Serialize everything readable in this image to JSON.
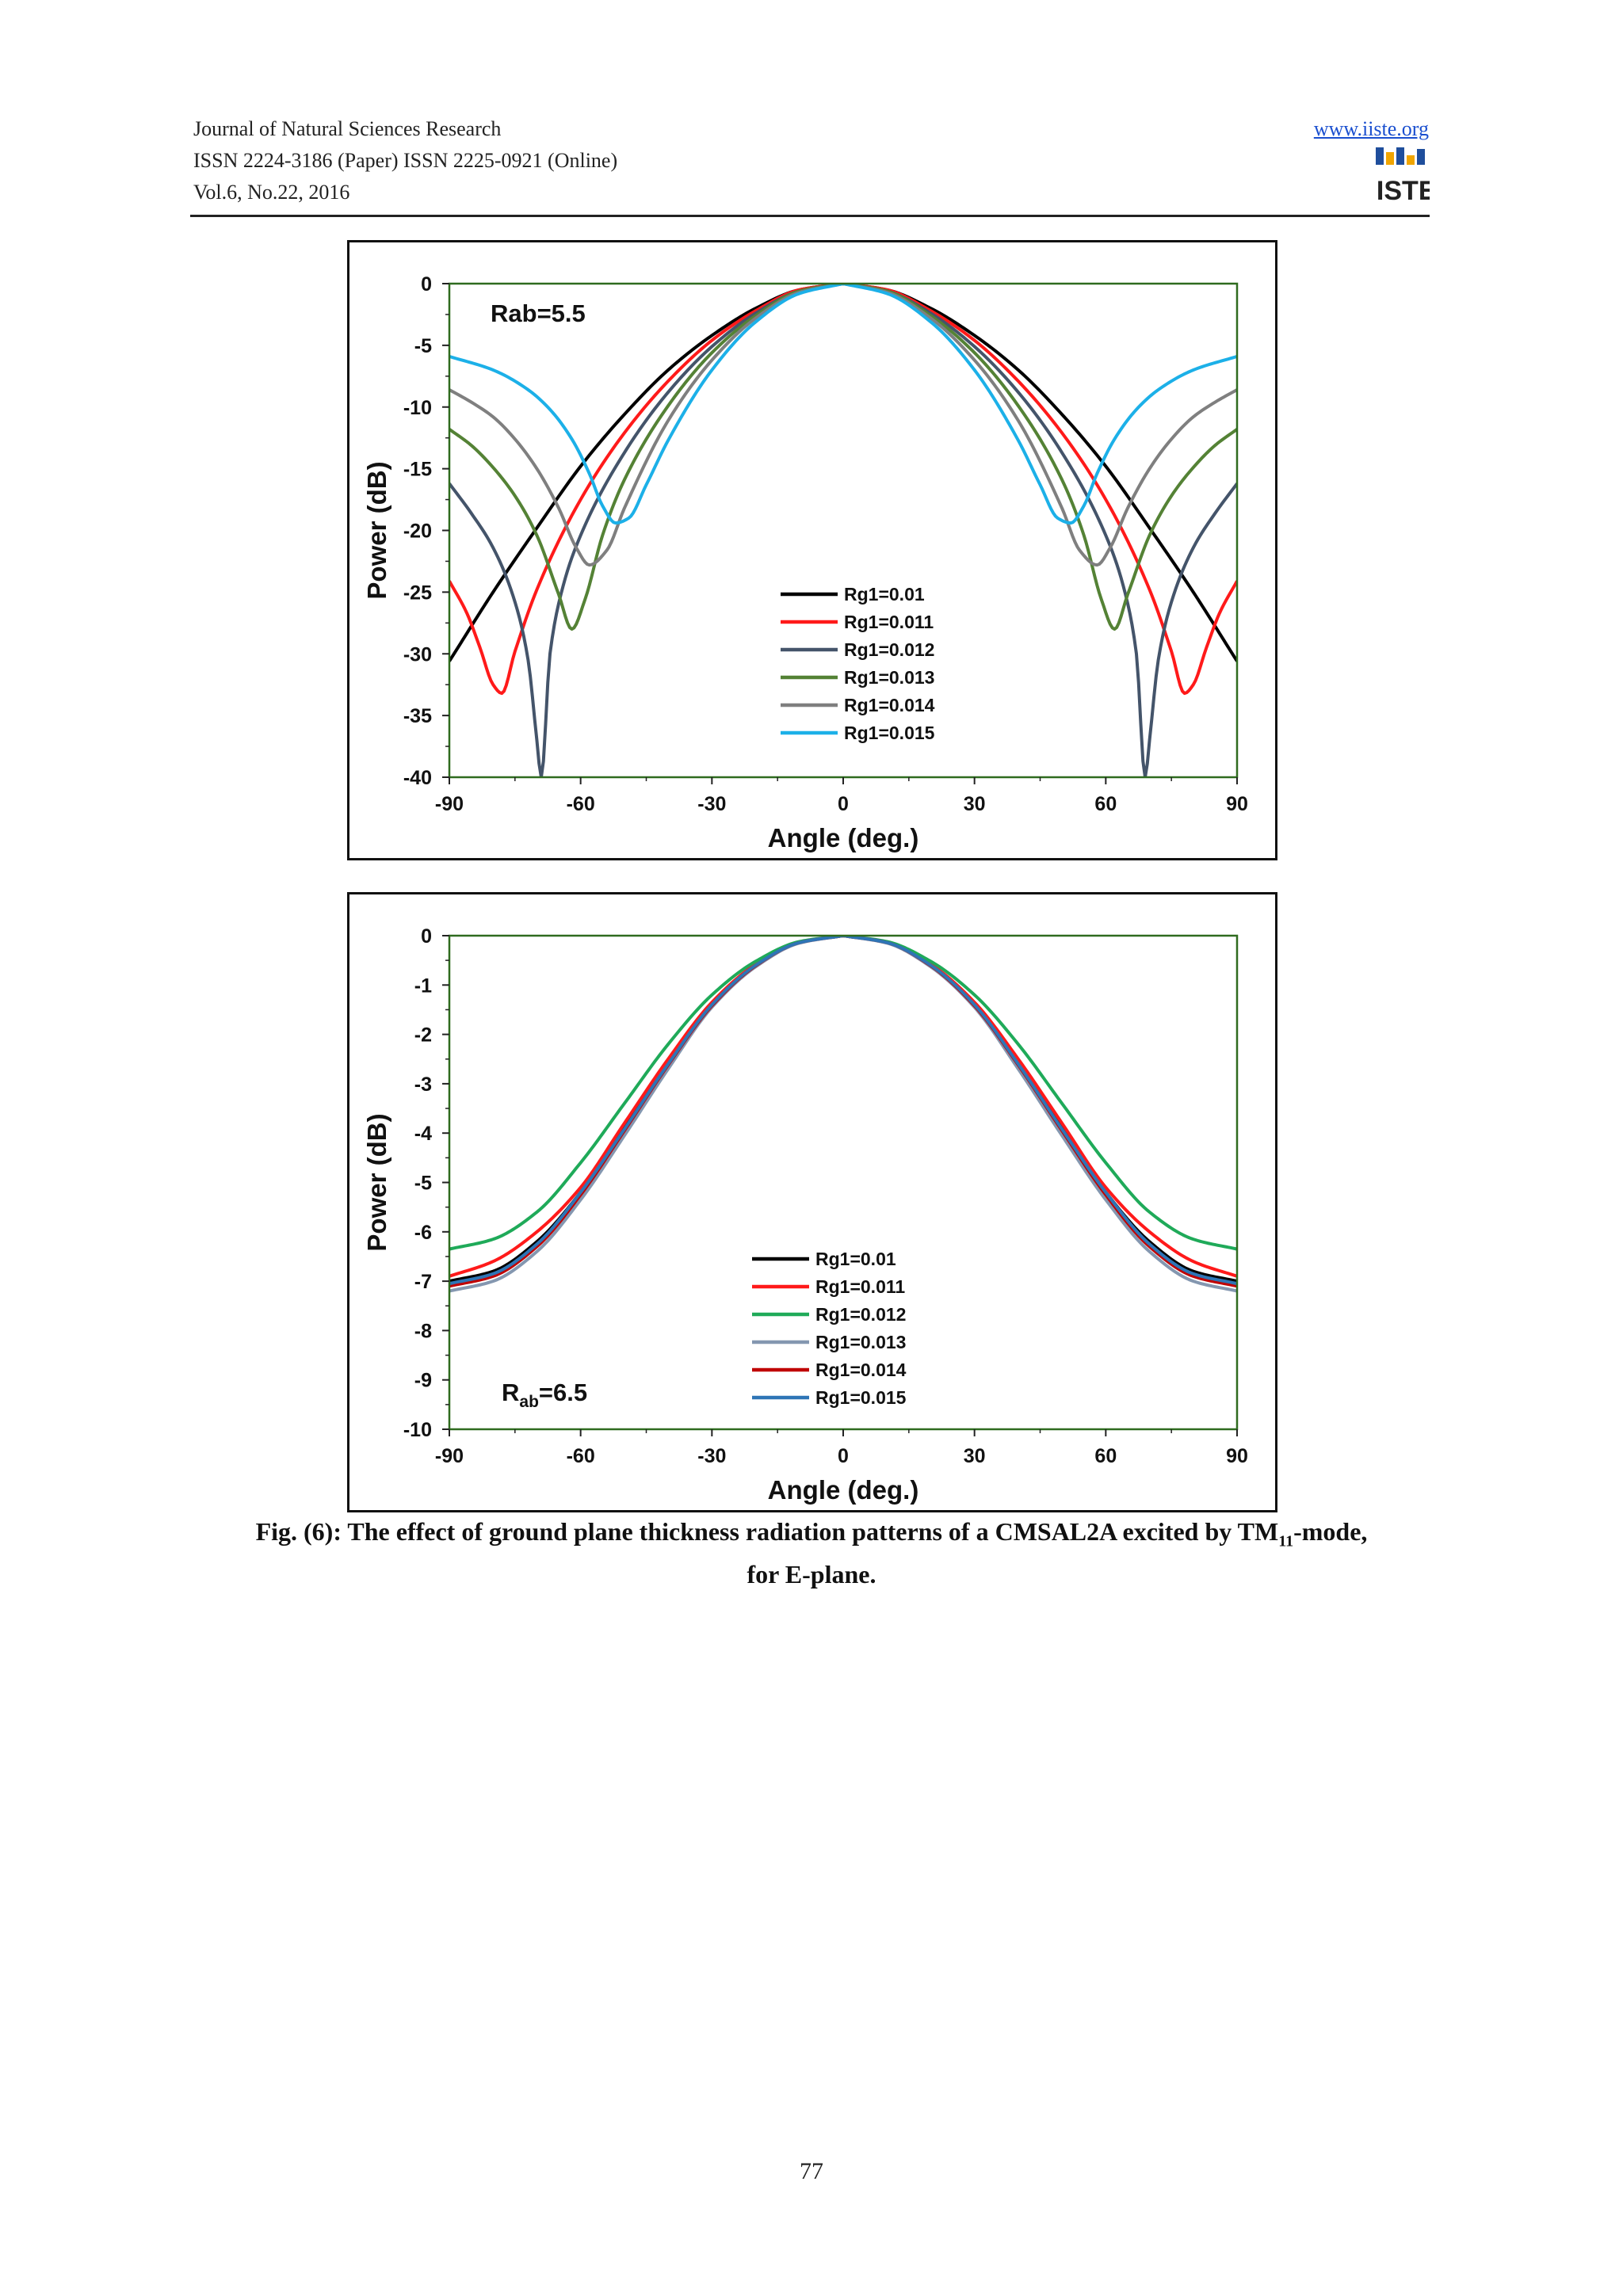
{
  "header": {
    "journal": "Journal of Natural Sciences Research",
    "issn": "ISSN 2224-3186 (Paper)   ISSN 2225-0921 (Online)",
    "volume": "Vol.6, No.22, 2016",
    "website": "www.iiste.org",
    "logo_text": "IISTE"
  },
  "caption": {
    "line1_pre": "Fig. (6): The effect of ground plane thickness radiation patterns of a CMSAL2A excited by TM",
    "line1_sub": "11",
    "line1_post": "-mode,",
    "line2": "for E-plane."
  },
  "page_number": "77",
  "chart_data": [
    {
      "type": "line",
      "annotation": "Rab=5.5",
      "xlabel": "Angle (deg.)",
      "ylabel": "Power (dB)",
      "xlim": [
        -90,
        90
      ],
      "ylim": [
        -40,
        0
      ],
      "xticks": [
        "-90",
        "-60",
        "-30",
        "0",
        "30",
        "60",
        "90"
      ],
      "yticks": [
        "0",
        "-5",
        "-10",
        "-15",
        "-20",
        "-25",
        "-30",
        "-35",
        "-40"
      ],
      "legend_position": "lower-center",
      "series": [
        {
          "name": "Rg1=0.01",
          "color": "#000000",
          "x": [
            0,
            10,
            20,
            30,
            40,
            50,
            60,
            70,
            80,
            90
          ],
          "y": [
            0,
            -0.5,
            -2,
            -4.2,
            -7,
            -10.6,
            -14.8,
            -19.8,
            -25,
            -30.6
          ]
        },
        {
          "name": "Rg1=0.011",
          "color": "#ff1a1a",
          "x": [
            0,
            10,
            20,
            30,
            40,
            50,
            60,
            70,
            75,
            78,
            80,
            83,
            86,
            90
          ],
          "y": [
            0,
            -0.5,
            -2.2,
            -4.6,
            -7.9,
            -12.1,
            -17.5,
            -24.8,
            -29.8,
            -33.2,
            -32.5,
            -29.5,
            -26.7,
            -24.1
          ]
        },
        {
          "name": "Rg1=0.012",
          "color": "#44546a",
          "x": [
            0,
            10,
            20,
            30,
            40,
            50,
            60,
            64,
            67,
            69,
            70,
            72,
            75,
            80,
            85,
            90
          ],
          "y": [
            0,
            -0.6,
            -2.4,
            -5.1,
            -8.8,
            -13.7,
            -20.4,
            -24.5,
            -30,
            -40,
            -37,
            -30.5,
            -25.8,
            -21.4,
            -18.6,
            -16.2
          ]
        },
        {
          "name": "Rg1=0.013",
          "color": "#548235",
          "x": [
            0,
            10,
            20,
            30,
            40,
            50,
            55,
            59,
            62,
            65,
            70,
            75,
            80,
            85,
            90
          ],
          "y": [
            0,
            -0.6,
            -2.6,
            -5.6,
            -9.9,
            -15.9,
            -20.4,
            -25.6,
            -28,
            -25.2,
            -20.4,
            -17.2,
            -14.9,
            -13.1,
            -11.8
          ]
        },
        {
          "name": "Rg1=0.014",
          "color": "#7f7f7f",
          "x": [
            0,
            10,
            20,
            30,
            40,
            50,
            54,
            58,
            61,
            65,
            70,
            75,
            80,
            85,
            90
          ],
          "y": [
            0,
            -0.7,
            -2.8,
            -6.2,
            -11.1,
            -18.2,
            -21.6,
            -22.8,
            -21.4,
            -18.2,
            -15,
            -12.6,
            -10.8,
            -9.6,
            -8.6
          ]
        },
        {
          "name": "Rg1=0.015",
          "color": "#1cb0e8",
          "x": [
            0,
            10,
            20,
            30,
            40,
            45,
            49,
            52,
            55,
            58,
            62,
            67,
            72,
            80,
            90
          ],
          "y": [
            0,
            -0.8,
            -3.1,
            -7,
            -12.7,
            -16.3,
            -19,
            -19.4,
            -18,
            -15.4,
            -12.6,
            -10.2,
            -8.6,
            -7,
            -5.9
          ]
        }
      ]
    },
    {
      "type": "line",
      "annotation_main": "R",
      "annotation_sub": "ab",
      "annotation_tail": "=6.5",
      "xlabel": "Angle (deg.)",
      "ylabel": "Power (dB)",
      "xlim": [
        -90,
        90
      ],
      "ylim": [
        -10,
        0
      ],
      "xticks": [
        "-90",
        "-60",
        "-30",
        "0",
        "30",
        "60",
        "90"
      ],
      "yticks": [
        "0",
        "-1",
        "-2",
        "-3",
        "-4",
        "-5",
        "-6",
        "-7",
        "-8",
        "-9",
        "-10"
      ],
      "legend_position": "lower-center",
      "series": [
        {
          "name": "Rg1=0.01",
          "color": "#000000",
          "x": [
            0,
            10,
            20,
            30,
            40,
            50,
            60,
            70,
            80,
            90
          ],
          "y": [
            0,
            -0.14,
            -0.6,
            -1.4,
            -2.6,
            -3.9,
            -5.2,
            -6.2,
            -6.8,
            -7.0
          ]
        },
        {
          "name": "Rg1=0.011",
          "color": "#ff1a1a",
          "x": [
            0,
            10,
            20,
            30,
            40,
            50,
            60,
            70,
            80,
            90
          ],
          "y": [
            0,
            -0.13,
            -0.58,
            -1.35,
            -2.5,
            -3.8,
            -5.1,
            -6.0,
            -6.6,
            -6.9
          ]
        },
        {
          "name": "Rg1=0.012",
          "color": "#1faa59",
          "x": [
            0,
            10,
            20,
            30,
            40,
            50,
            60,
            70,
            80,
            90
          ],
          "y": [
            0,
            -0.12,
            -0.52,
            -1.2,
            -2.2,
            -3.4,
            -4.6,
            -5.6,
            -6.15,
            -6.35
          ]
        },
        {
          "name": "Rg1=0.013",
          "color": "#8497b0",
          "x": [
            0,
            10,
            20,
            30,
            40,
            50,
            60,
            70,
            80,
            90
          ],
          "y": [
            0,
            -0.15,
            -0.63,
            -1.45,
            -2.7,
            -4.05,
            -5.35,
            -6.4,
            -7.0,
            -7.2
          ]
        },
        {
          "name": "Rg1=0.014",
          "color": "#c00000",
          "x": [
            0,
            10,
            20,
            30,
            40,
            50,
            60,
            70,
            80,
            90
          ],
          "y": [
            0,
            -0.14,
            -0.61,
            -1.42,
            -2.62,
            -3.95,
            -5.25,
            -6.3,
            -6.9,
            -7.1
          ]
        },
        {
          "name": "Rg1=0.015",
          "color": "#2e75b6",
          "x": [
            0,
            10,
            20,
            30,
            40,
            50,
            60,
            70,
            80,
            90
          ],
          "y": [
            0,
            -0.14,
            -0.6,
            -1.4,
            -2.6,
            -3.92,
            -5.2,
            -6.25,
            -6.85,
            -7.05
          ]
        }
      ]
    }
  ]
}
